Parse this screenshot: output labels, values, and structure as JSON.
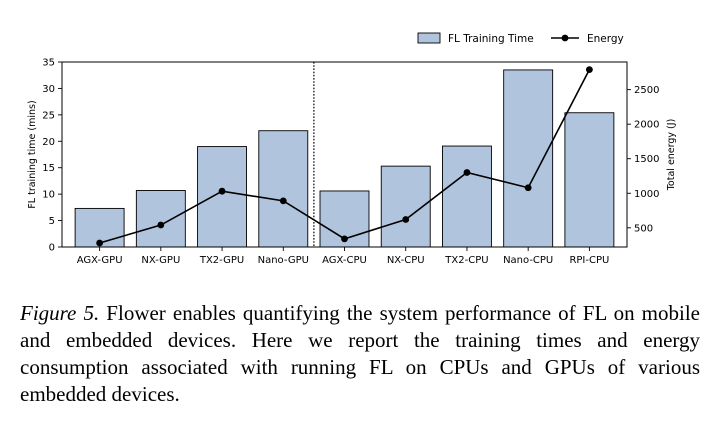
{
  "chart_data": {
    "type": "bar",
    "categories": [
      "AGX-GPU",
      "NX-GPU",
      "TX2-GPU",
      "Nano-GPU",
      "AGX-CPU",
      "NX-CPU",
      "TX2-CPU",
      "Nano-CPU",
      "RPI-CPU"
    ],
    "series": [
      {
        "name": "FL Training Time",
        "type": "bar",
        "axis": "left",
        "color": "#b0c4de",
        "values": [
          7.3,
          10.7,
          19.0,
          22.0,
          10.6,
          15.3,
          19.1,
          33.5,
          25.4
        ]
      },
      {
        "name": "Energy",
        "type": "line",
        "axis": "right",
        "color": "#000000",
        "values": [
          280,
          540,
          1030,
          890,
          340,
          620,
          1300,
          1080,
          2790
        ]
      }
    ],
    "ylabel": "FL training time (mins)",
    "y2label": "Total energy (J)",
    "ylim": [
      0,
      35
    ],
    "y2lim": [
      222,
      2900
    ],
    "yticks": [
      0,
      5,
      10,
      15,
      20,
      25,
      30,
      35
    ],
    "y2ticks": [
      500,
      1000,
      1500,
      2000,
      2500
    ],
    "divider_after_category": "Nano-GPU",
    "legend_position": "top-right"
  },
  "caption": {
    "figure_label": "Figure 5.",
    "text": " Flower enables quantifying the system performance of FL on mobile and embedded devices. Here we report the training times and energy consumption associated with running FL on CPUs and GPUs of various embedded devices."
  }
}
